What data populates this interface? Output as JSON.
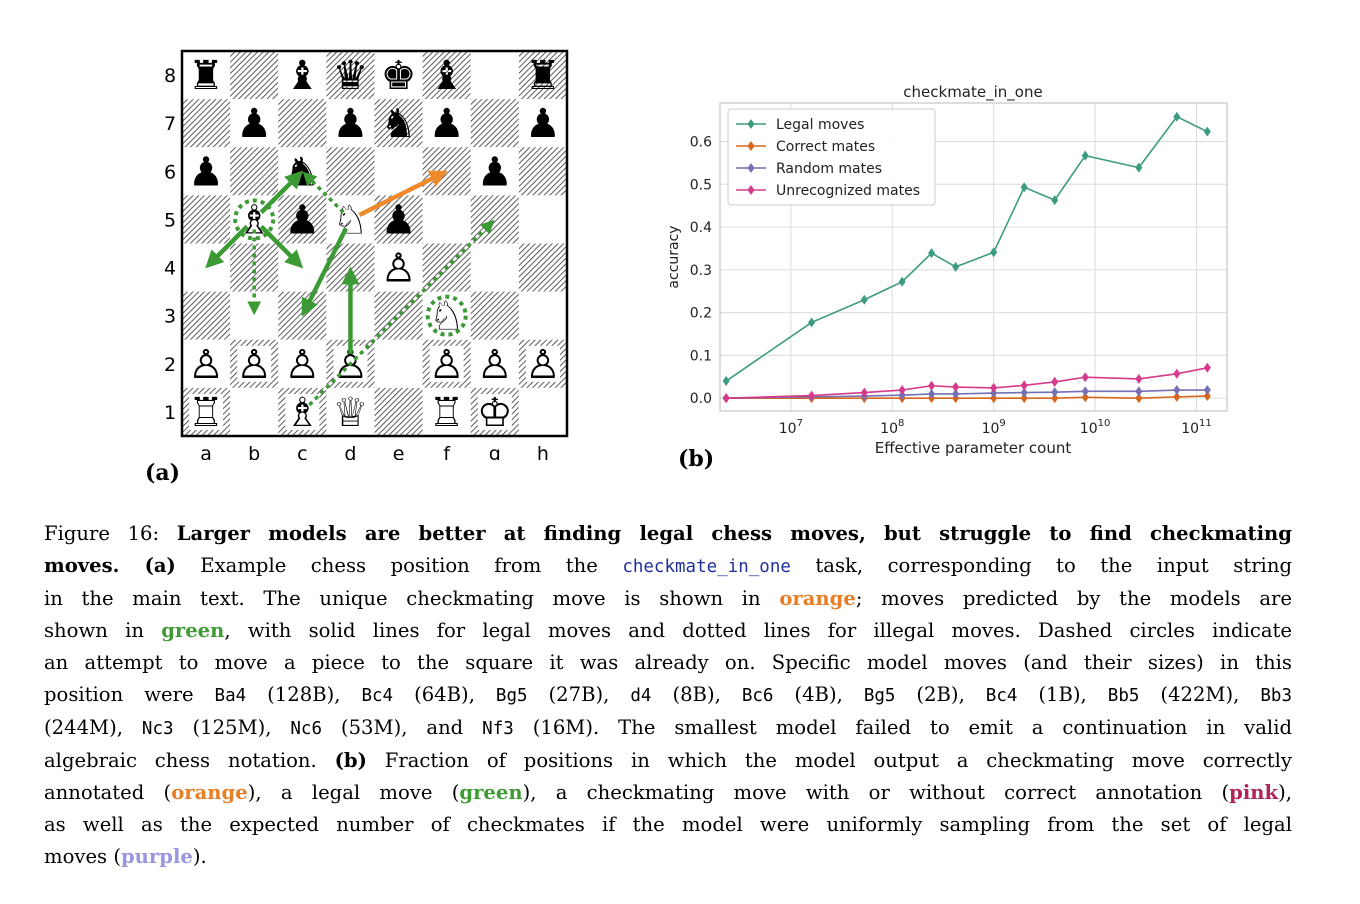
{
  "panels": {
    "a_label": "(a)",
    "b_label": "(b)"
  },
  "board": {
    "files": [
      "a",
      "b",
      "c",
      "d",
      "e",
      "f",
      "g",
      "h"
    ],
    "ranks": [
      "8",
      "7",
      "6",
      "5",
      "4",
      "3",
      "2",
      "1"
    ],
    "black_glyphs": {
      "r": "♜",
      "n": "♞",
      "b": "♝",
      "q": "♛",
      "k": "♚",
      "p": "♟"
    },
    "white_glyphs": {
      "R": "♖",
      "N": "♘",
      "B": "♗",
      "Q": "♕",
      "K": "♔",
      "P": "♙"
    },
    "pieces": [
      {
        "sq": "a8",
        "p": "r"
      },
      {
        "sq": "c8",
        "p": "b"
      },
      {
        "sq": "d8",
        "p": "q"
      },
      {
        "sq": "e8",
        "p": "k"
      },
      {
        "sq": "f8",
        "p": "b"
      },
      {
        "sq": "h8",
        "p": "r"
      },
      {
        "sq": "b7",
        "p": "p"
      },
      {
        "sq": "d7",
        "p": "p"
      },
      {
        "sq": "e7",
        "p": "n"
      },
      {
        "sq": "f7",
        "p": "p"
      },
      {
        "sq": "h7",
        "p": "p"
      },
      {
        "sq": "a6",
        "p": "p"
      },
      {
        "sq": "c6",
        "p": "n"
      },
      {
        "sq": "g6",
        "p": "p"
      },
      {
        "sq": "b5",
        "p": "B"
      },
      {
        "sq": "c5",
        "p": "p"
      },
      {
        "sq": "d5",
        "p": "N"
      },
      {
        "sq": "e5",
        "p": "p"
      },
      {
        "sq": "e4",
        "p": "P"
      },
      {
        "sq": "f3",
        "p": "N"
      },
      {
        "sq": "a2",
        "p": "P"
      },
      {
        "sq": "b2",
        "p": "P"
      },
      {
        "sq": "c2",
        "p": "P"
      },
      {
        "sq": "d2",
        "p": "P"
      },
      {
        "sq": "f2",
        "p": "P"
      },
      {
        "sq": "g2",
        "p": "P"
      },
      {
        "sq": "h2",
        "p": "P"
      },
      {
        "sq": "a1",
        "p": "R"
      },
      {
        "sq": "c1",
        "p": "B"
      },
      {
        "sq": "d1",
        "p": "Q"
      },
      {
        "sq": "f1",
        "p": "R"
      },
      {
        "sq": "g1",
        "p": "K"
      }
    ],
    "arrows": [
      {
        "from": "d5",
        "to": "f6",
        "color": "orange",
        "style": "solid",
        "label": "checkmating move"
      },
      {
        "from": "b5",
        "to": "a4",
        "color": "green",
        "style": "solid"
      },
      {
        "from": "b5",
        "to": "c4",
        "color": "green",
        "style": "solid"
      },
      {
        "from": "b5",
        "to": "c6",
        "color": "green",
        "style": "solid"
      },
      {
        "from": "b5",
        "to": "b3",
        "color": "green",
        "style": "dotted"
      },
      {
        "from": "d5",
        "to": "c6",
        "color": "green",
        "style": "dotted"
      },
      {
        "from": "d5",
        "to": "c3",
        "color": "green",
        "style": "solid"
      },
      {
        "from": "d2",
        "to": "d4",
        "color": "green",
        "style": "solid"
      },
      {
        "from": "c1",
        "to": "g5",
        "color": "green",
        "style": "dotted"
      }
    ],
    "circles": [
      {
        "sq": "b5",
        "color": "green"
      },
      {
        "sq": "f3",
        "color": "green"
      }
    ],
    "colors": {
      "orange": "#ef8a2d",
      "green": "#3c9a35"
    }
  },
  "chart_data": {
    "type": "line",
    "title": "checkmate_in_one",
    "xlabel": "Effective parameter count",
    "ylabel": "accuracy",
    "x_scale": "log",
    "xlim": [
      2000000,
      200000000000
    ],
    "ylim": [
      -0.03,
      0.69
    ],
    "yticks": [
      0.0,
      0.1,
      0.2,
      0.3,
      0.4,
      0.5,
      0.6
    ],
    "ytick_labels": [
      "0.0",
      "0.1",
      "0.2",
      "0.3",
      "0.4",
      "0.5",
      "0.6"
    ],
    "xticks": [
      10000000,
      100000000,
      1000000000,
      10000000000,
      100000000000
    ],
    "xtick_labels": [
      {
        "base": "10",
        "exp": "7"
      },
      {
        "base": "10",
        "exp": "8"
      },
      {
        "base": "10",
        "exp": "9"
      },
      {
        "base": "10",
        "exp": "10"
      },
      {
        "base": "10",
        "exp": "11"
      }
    ],
    "grid": true,
    "legend": "top-left",
    "x": [
      2300000,
      16000000,
      53000000,
      125000000,
      244000000,
      422000000,
      1000000000,
      2000000000,
      4000000000,
      8000000000,
      27000000000,
      64000000000,
      128000000000
    ],
    "series": [
      {
        "name": "Legal moves",
        "color": "#3d9c7f",
        "values": [
          0.04,
          0.177,
          0.23,
          0.272,
          0.339,
          0.307,
          0.341,
          0.493,
          0.463,
          0.567,
          0.539,
          0.658,
          0.623
        ]
      },
      {
        "name": "Correct mates",
        "color": "#d6671d",
        "values": [
          0.0,
          0.0,
          0.0,
          0.0,
          0.0,
          0.0,
          0.0,
          0.0,
          0.0,
          0.002,
          0.0,
          0.003,
          0.005
        ]
      },
      {
        "name": "Random mates",
        "color": "#7471b2",
        "values": [
          0.0,
          0.003,
          0.005,
          0.007,
          0.01,
          0.01,
          0.012,
          0.013,
          0.014,
          0.016,
          0.016,
          0.019,
          0.019
        ]
      },
      {
        "name": "Unrecognized mates",
        "color": "#d63a8a",
        "values": [
          0.0,
          0.006,
          0.013,
          0.019,
          0.029,
          0.026,
          0.024,
          0.03,
          0.038,
          0.049,
          0.045,
          0.057,
          0.071
        ]
      }
    ]
  },
  "caption": {
    "l1": [
      {
        "t": "Figure 16: ",
        "cls": ""
      },
      {
        "t": "Larger models are better at finding legal chess moves, but struggle to find checkmating",
        "cls": "b"
      }
    ],
    "l2": [
      {
        "t": "moves. ",
        "cls": "b"
      },
      {
        "t": "(a)",
        "cls": "b"
      },
      {
        "t": " Example chess position from the ",
        "cls": ""
      },
      {
        "t": "checkmate_in_one",
        "cls": "code tt-blue"
      },
      {
        "t": " task, corresponding to the input string",
        "cls": ""
      }
    ],
    "l3": [
      {
        "t": "in the main text. The unique checkmating move is shown in ",
        "cls": ""
      },
      {
        "t": "orange",
        "cls": "c-orange"
      },
      {
        "t": "; moves predicted by the models are",
        "cls": ""
      }
    ],
    "l4": [
      {
        "t": "shown in ",
        "cls": ""
      },
      {
        "t": "green",
        "cls": "c-green"
      },
      {
        "t": ", with solid lines for legal moves and dotted lines for illegal moves. Dashed circles indicate",
        "cls": ""
      }
    ],
    "l5": [
      {
        "t": "an attempt to move a piece to the square it was already on. Specific model moves (and their sizes) in this",
        "cls": ""
      }
    ],
    "l6": [
      {
        "t": "position were ",
        "cls": ""
      },
      {
        "t": "Ba4",
        "cls": "code"
      },
      {
        "t": " (128B), ",
        "cls": ""
      },
      {
        "t": "Bc4",
        "cls": "code"
      },
      {
        "t": " (64B), ",
        "cls": ""
      },
      {
        "t": "Bg5",
        "cls": "code"
      },
      {
        "t": " (27B), ",
        "cls": ""
      },
      {
        "t": "d4",
        "cls": "code"
      },
      {
        "t": " (8B), ",
        "cls": ""
      },
      {
        "t": "Bc6",
        "cls": "code"
      },
      {
        "t": " (4B), ",
        "cls": ""
      },
      {
        "t": "Bg5",
        "cls": "code"
      },
      {
        "t": " (2B), ",
        "cls": ""
      },
      {
        "t": "Bc4",
        "cls": "code"
      },
      {
        "t": " (1B), ",
        "cls": ""
      },
      {
        "t": "Bb5",
        "cls": "code"
      },
      {
        "t": " (422M), ",
        "cls": ""
      },
      {
        "t": "Bb3",
        "cls": "code"
      }
    ],
    "l7": [
      {
        "t": "(244M), ",
        "cls": ""
      },
      {
        "t": "Nc3",
        "cls": "code"
      },
      {
        "t": " (125M), ",
        "cls": ""
      },
      {
        "t": "Nc6",
        "cls": "code"
      },
      {
        "t": " (53M), and ",
        "cls": ""
      },
      {
        "t": "Nf3",
        "cls": "code"
      },
      {
        "t": " (16M). The smallest model failed to emit a continuation in valid",
        "cls": ""
      }
    ],
    "l8": [
      {
        "t": "algebraic chess notation. ",
        "cls": ""
      },
      {
        "t": "(b)",
        "cls": "b"
      },
      {
        "t": " Fraction of positions in which the model output a checkmating move correctly",
        "cls": ""
      }
    ],
    "l9": [
      {
        "t": "annotated (",
        "cls": ""
      },
      {
        "t": "orange",
        "cls": "c-orange"
      },
      {
        "t": "), a legal move (",
        "cls": ""
      },
      {
        "t": "green",
        "cls": "c-green"
      },
      {
        "t": "), a checkmating move with or without correct annotation (",
        "cls": ""
      },
      {
        "t": "pink",
        "cls": "c-pink"
      },
      {
        "t": "),",
        "cls": ""
      }
    ],
    "l10": [
      {
        "t": "as well as the expected number of checkmates if the model were uniformly sampling from the set of legal",
        "cls": ""
      }
    ],
    "l11": [
      {
        "t": "moves (",
        "cls": ""
      },
      {
        "t": "purple",
        "cls": "c-purple"
      },
      {
        "t": ").",
        "cls": ""
      }
    ]
  }
}
